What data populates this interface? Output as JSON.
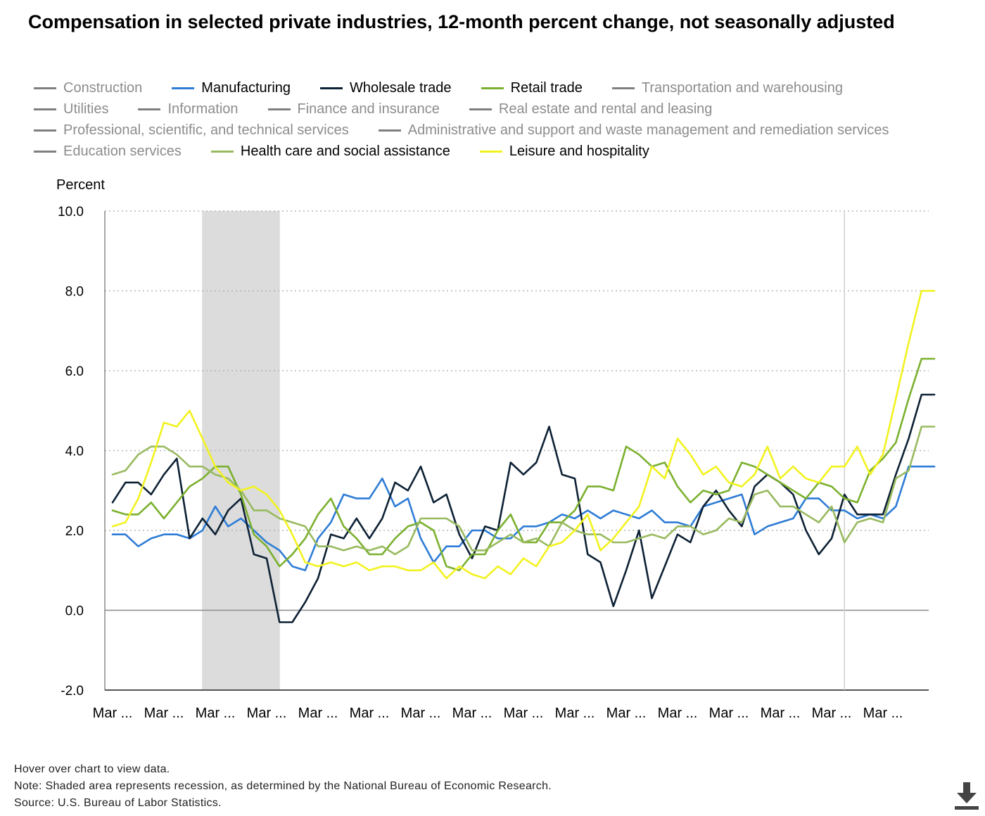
{
  "title": "Compensation in selected private industries, 12-month percent change, not seasonally adjusted",
  "legend": [
    {
      "label": "Construction",
      "color": "#7f7f7f",
      "visible": false
    },
    {
      "label": "Manufacturing",
      "color": "#2e7cd6",
      "visible": true
    },
    {
      "label": "Wholesale trade",
      "color": "#0d2135",
      "visible": true
    },
    {
      "label": "Retail trade",
      "color": "#7bb02e",
      "visible": true
    },
    {
      "label": "Transportation and warehousing",
      "color": "#7f7f7f",
      "visible": false
    },
    {
      "label": "Utilities",
      "color": "#7f7f7f",
      "visible": false
    },
    {
      "label": "Information",
      "color": "#7f7f7f",
      "visible": false
    },
    {
      "label": "Finance and insurance",
      "color": "#7f7f7f",
      "visible": false
    },
    {
      "label": "Real estate and rental and leasing",
      "color": "#7f7f7f",
      "visible": false
    },
    {
      "label": "Professional, scientific, and technical services",
      "color": "#7f7f7f",
      "visible": false
    },
    {
      "label": "Administrative and support and waste management and remediation services",
      "color": "#7f7f7f",
      "visible": false
    },
    {
      "label": "Education services",
      "color": "#7f7f7f",
      "visible": false
    },
    {
      "label": "Health care and social assistance",
      "color": "#98ba5f",
      "visible": true
    },
    {
      "label": "Leisure and hospitality",
      "color": "#f2f21f",
      "visible": true
    }
  ],
  "footer": {
    "hover": "Hover over chart to view data.",
    "note": "Note: Shaded area represents recession, as determined by the National Bureau of Economic Research.",
    "source": "Source: U.S. Bureau of Labor Statistics."
  },
  "chart_data": {
    "type": "line",
    "ylabel": "Percent",
    "ylim": [
      -2.0,
      10.0
    ],
    "yticks": [
      "10.0",
      "8.0",
      "6.0",
      "4.0",
      "2.0",
      "0.0",
      "-2.0"
    ],
    "ytick_values": [
      10,
      8,
      6,
      4,
      2,
      0,
      -2
    ],
    "xtick_labels": [
      "Mar ...",
      "Mar ...",
      "Mar ...",
      "Mar ...",
      "Mar ...",
      "Mar ...",
      "Mar ...",
      "Mar ...",
      "Mar ...",
      "Mar ...",
      "Mar ...",
      "Mar ...",
      "Mar ...",
      "Mar ...",
      "Mar ...",
      "Mar ..."
    ],
    "num_points": 65,
    "first_tick_index": 0,
    "tick_every": 4,
    "recession_index_range": [
      7,
      13
    ],
    "reference_line_index": 57,
    "grid": "dotted horizontal",
    "legend_position": "top",
    "series": [
      {
        "name": "Manufacturing",
        "color": "#2e7cd6",
        "values": [
          1.9,
          1.9,
          1.6,
          1.8,
          1.9,
          1.9,
          1.8,
          2.0,
          2.6,
          2.1,
          2.3,
          2.0,
          1.7,
          1.5,
          1.1,
          1.0,
          1.8,
          2.2,
          2.9,
          2.8,
          2.8,
          3.3,
          2.6,
          2.8,
          1.8,
          1.2,
          1.6,
          1.6,
          2.0,
          2.0,
          1.8,
          1.8,
          2.1,
          2.1,
          2.2,
          2.4,
          2.3,
          2.5,
          2.3,
          2.5,
          2.4,
          2.3,
          2.5,
          2.2,
          2.2,
          2.1,
          2.6,
          2.7,
          2.8,
          2.9,
          1.9,
          2.1,
          2.2,
          2.3,
          2.8,
          2.8,
          2.5,
          2.5,
          2.3,
          2.4,
          2.3,
          2.6,
          3.6,
          3.6,
          3.6
        ]
      },
      {
        "name": "Wholesale trade",
        "color": "#0d2135",
        "values": [
          2.7,
          3.2,
          3.2,
          2.9,
          3.4,
          3.8,
          1.8,
          2.3,
          1.9,
          2.5,
          2.8,
          1.4,
          1.3,
          -0.3,
          -0.3,
          0.2,
          0.8,
          1.9,
          1.8,
          2.3,
          1.8,
          2.3,
          3.2,
          3.0,
          3.6,
          2.7,
          2.9,
          1.9,
          1.3,
          2.1,
          2.0,
          3.7,
          3.4,
          3.7,
          4.6,
          3.4,
          3.3,
          1.4,
          1.2,
          0.1,
          1.0,
          2.0,
          0.3,
          1.1,
          1.9,
          1.7,
          2.6,
          3.0,
          2.5,
          2.1,
          3.1,
          3.4,
          3.2,
          2.9,
          2.0,
          1.4,
          1.8,
          2.9,
          2.4,
          2.4,
          2.4,
          3.4,
          4.3,
          5.4,
          5.4
        ]
      },
      {
        "name": "Retail trade",
        "color": "#7bb02e",
        "values": [
          2.5,
          2.4,
          2.4,
          2.7,
          2.3,
          2.7,
          3.1,
          3.3,
          3.6,
          3.6,
          2.9,
          1.9,
          1.6,
          1.1,
          1.4,
          1.8,
          2.4,
          2.8,
          2.1,
          1.8,
          1.4,
          1.4,
          1.8,
          2.1,
          2.2,
          2.0,
          1.1,
          1.0,
          1.4,
          1.4,
          2.0,
          2.4,
          1.7,
          1.7,
          2.2,
          2.2,
          2.5,
          3.1,
          3.1,
          3.0,
          4.1,
          3.9,
          3.6,
          3.7,
          3.1,
          2.7,
          3.0,
          2.9,
          3.0,
          3.7,
          3.6,
          3.4,
          3.2,
          3.0,
          2.8,
          3.2,
          3.1,
          2.8,
          2.7,
          3.5,
          3.8,
          4.2,
          5.3,
          6.3,
          6.3
        ]
      },
      {
        "name": "Health care and social assistance",
        "color": "#98ba5f",
        "values": [
          3.4,
          3.5,
          3.9,
          4.1,
          4.1,
          3.9,
          3.6,
          3.6,
          3.4,
          3.3,
          3.0,
          2.5,
          2.5,
          2.3,
          2.2,
          2.1,
          1.6,
          1.6,
          1.5,
          1.6,
          1.5,
          1.6,
          1.4,
          1.6,
          2.3,
          2.3,
          2.3,
          2.1,
          1.5,
          1.5,
          1.7,
          1.9,
          1.7,
          1.8,
          1.6,
          2.2,
          2.0,
          1.9,
          1.9,
          1.7,
          1.7,
          1.8,
          1.9,
          1.8,
          2.1,
          2.1,
          1.9,
          2.0,
          2.3,
          2.2,
          2.9,
          3.0,
          2.6,
          2.6,
          2.4,
          2.2,
          2.6,
          1.7,
          2.2,
          2.3,
          2.2,
          3.3,
          3.5,
          4.6,
          4.6
        ]
      },
      {
        "name": "Leisure and hospitality",
        "color": "#f2f21f",
        "values": [
          2.1,
          2.2,
          2.8,
          3.7,
          4.7,
          4.6,
          5.0,
          4.3,
          3.6,
          3.2,
          3.0,
          3.1,
          2.9,
          2.5,
          1.9,
          1.2,
          1.1,
          1.2,
          1.1,
          1.2,
          1.0,
          1.1,
          1.1,
          1.0,
          1.0,
          1.2,
          0.8,
          1.1,
          0.9,
          0.8,
          1.1,
          0.9,
          1.3,
          1.1,
          1.6,
          1.7,
          2.0,
          2.4,
          1.5,
          1.8,
          2.2,
          2.6,
          3.6,
          3.3,
          4.3,
          3.9,
          3.4,
          3.6,
          3.2,
          3.1,
          3.4,
          4.1,
          3.3,
          3.6,
          3.3,
          3.2,
          3.6,
          3.6,
          4.1,
          3.4,
          3.9,
          5.3,
          6.7,
          8.0,
          8.0
        ]
      }
    ]
  }
}
